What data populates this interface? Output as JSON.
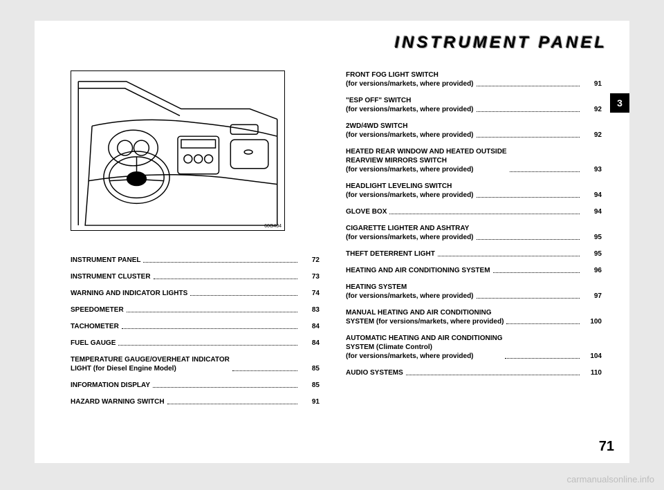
{
  "section_title": "INSTRUMENT PANEL",
  "tab_number": "3",
  "page_number": "71",
  "figure_code": "60G404",
  "watermark": "carmanualsonline.info",
  "toc_left": [
    {
      "label": "INSTRUMENT PANEL",
      "page": "72"
    },
    {
      "label": "INSTRUMENT CLUSTER",
      "page": "73"
    },
    {
      "label": "WARNING AND INDICATOR LIGHTS",
      "page": "74"
    },
    {
      "label": "SPEEDOMETER",
      "page": "83"
    },
    {
      "label": "TACHOMETER",
      "page": "84"
    },
    {
      "label": "FUEL GAUGE",
      "page": "84"
    },
    {
      "label": "TEMPERATURE GAUGE/OVERHEAT INDICATOR\nLIGHT (for Diesel Engine Model)",
      "page": "85"
    },
    {
      "label": "INFORMATION DISPLAY",
      "page": "85"
    },
    {
      "label": "HAZARD WARNING SWITCH",
      "page": "91"
    }
  ],
  "toc_right": [
    {
      "label": "FRONT FOG LIGHT SWITCH",
      "sub": "(for versions/markets, where provided)",
      "page": "91"
    },
    {
      "label": "\"ESP OFF\" SWITCH",
      "sub": "(for versions/markets, where provided)",
      "page": "92"
    },
    {
      "label": "2WD/4WD SWITCH",
      "sub": "(for versions/markets, where provided)",
      "page": "92"
    },
    {
      "label": "HEATED REAR WINDOW AND HEATED OUTSIDE\nREARVIEW MIRRORS SWITCH",
      "sub": "(for versions/markets, where provided)",
      "page": "93"
    },
    {
      "label": "HEADLIGHT LEVELING SWITCH",
      "sub": "(for versions/markets, where provided)",
      "page": "94"
    },
    {
      "label": "GLOVE BOX",
      "page": "94"
    },
    {
      "label": "CIGARETTE LIGHTER AND ASHTRAY",
      "sub": "(for versions/markets, where provided)",
      "page": "95"
    },
    {
      "label": "THEFT DETERRENT LIGHT",
      "page": "95"
    },
    {
      "label": "HEATING AND AIR CONDITIONING SYSTEM",
      "page": "96"
    },
    {
      "label": "HEATING SYSTEM",
      "sub": "(for versions/markets, where provided)",
      "page": "97"
    },
    {
      "label": "MANUAL HEATING AND AIR CONDITIONING\nSYSTEM  (for versions/markets, where provided)",
      "page": "100"
    },
    {
      "label": "AUTOMATIC HEATING AND AIR CONDITIONING\nSYSTEM (Climate Control)",
      "sub": "(for versions/markets, where provided)",
      "page": "104"
    },
    {
      "label": "AUDIO SYSTEMS",
      "page": "110"
    }
  ]
}
